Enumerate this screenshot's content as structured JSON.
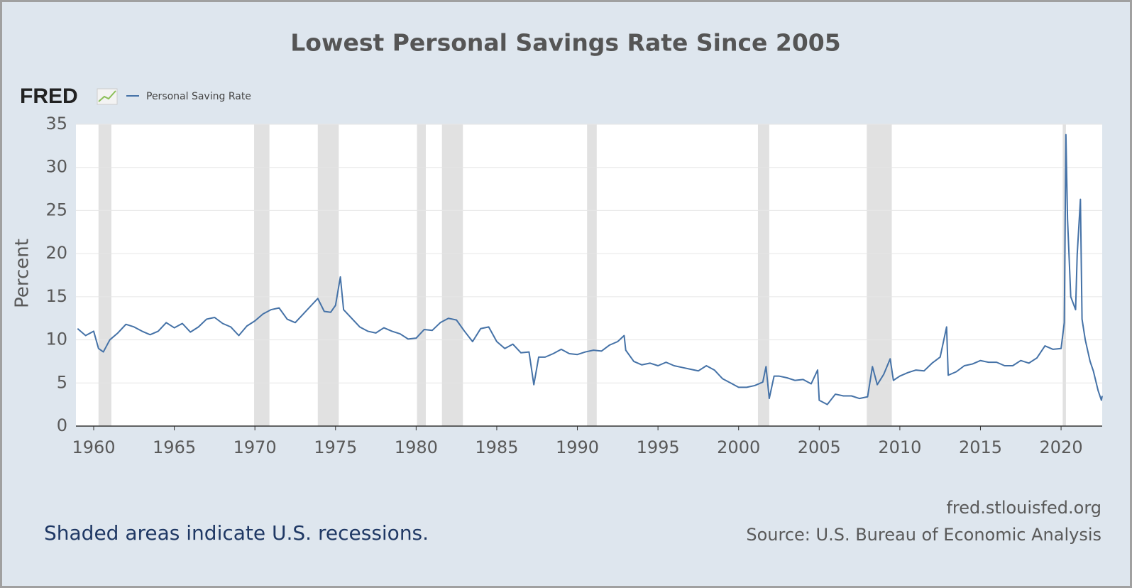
{
  "chart_data": {
    "type": "line",
    "title": "Lowest Personal Savings Rate Since 2005",
    "logo": "FRED",
    "y_label": "Percent",
    "note": "Shaded areas indicate U.S. recessions.",
    "url": "fred.stlouisfed.org",
    "source": "Source: U.S. Bureau of Economic Analysis",
    "xlim": [
      1958.9,
      2022.55
    ],
    "xticks": [
      1960,
      1965,
      1970,
      1975,
      1980,
      1985,
      1990,
      1995,
      2000,
      2005,
      2010,
      2015,
      2020
    ],
    "ylim": [
      0,
      35
    ],
    "yticks": [
      0,
      5,
      10,
      15,
      20,
      25,
      30,
      35
    ],
    "grid": true,
    "recessions": [
      [
        1960.3,
        1961.1
      ],
      [
        1969.95,
        1970.9
      ],
      [
        1973.9,
        1975.2
      ],
      [
        1980.05,
        1980.6
      ],
      [
        1981.6,
        1982.9
      ],
      [
        1990.6,
        1991.2
      ],
      [
        2001.2,
        2001.9
      ],
      [
        2007.95,
        2009.5
      ],
      [
        2020.1,
        2020.3
      ]
    ],
    "x": [
      1959.0,
      1959.5,
      1960.0,
      1960.3,
      1960.6,
      1961.0,
      1961.5,
      1962.0,
      1962.5,
      1963.0,
      1963.5,
      1964.0,
      1964.5,
      1965.0,
      1965.5,
      1966.0,
      1966.5,
      1967.0,
      1967.5,
      1968.0,
      1968.5,
      1969.0,
      1969.5,
      1970.0,
      1970.5,
      1971.0,
      1971.5,
      1972.0,
      1972.5,
      1973.0,
      1973.5,
      1973.9,
      1974.3,
      1974.7,
      1975.0,
      1975.3,
      1975.5,
      1976.0,
      1976.5,
      1977.0,
      1977.5,
      1978.0,
      1978.5,
      1979.0,
      1979.5,
      1980.0,
      1980.5,
      1981.0,
      1981.5,
      1982.0,
      1982.5,
      1983.0,
      1983.5,
      1984.0,
      1984.5,
      1985.0,
      1985.5,
      1986.0,
      1986.5,
      1987.0,
      1987.3,
      1987.6,
      1988.0,
      1988.5,
      1989.0,
      1989.5,
      1990.0,
      1990.5,
      1991.0,
      1991.5,
      1992.0,
      1992.5,
      1992.9,
      1993.0,
      1993.5,
      1994.0,
      1994.5,
      1995.0,
      1995.5,
      1996.0,
      1996.5,
      1997.0,
      1997.5,
      1998.0,
      1998.5,
      1999.0,
      1999.5,
      2000.0,
      2000.5,
      2001.0,
      2001.5,
      2001.7,
      2001.9,
      2002.2,
      2002.5,
      2003.0,
      2003.5,
      2004.0,
      2004.5,
      2004.9,
      2005.0,
      2005.5,
      2006.0,
      2006.5,
      2007.0,
      2007.5,
      2008.0,
      2008.3,
      2008.6,
      2009.0,
      2009.4,
      2009.6,
      2010.0,
      2010.5,
      2011.0,
      2011.5,
      2012.0,
      2012.5,
      2012.9,
      2013.0,
      2013.5,
      2014.0,
      2014.5,
      2015.0,
      2015.5,
      2016.0,
      2016.5,
      2017.0,
      2017.5,
      2018.0,
      2018.5,
      2019.0,
      2019.5,
      2020.0,
      2020.2,
      2020.3,
      2020.4,
      2020.6,
      2020.9,
      2021.0,
      2021.2,
      2021.3,
      2021.5,
      2021.8,
      2022.0,
      2022.3,
      2022.5,
      2022.55
    ],
    "series": [
      {
        "name": "Personal Saving Rate",
        "color": "#4572a7",
        "values": [
          11.3,
          10.5,
          11.0,
          9.0,
          8.6,
          10.0,
          10.8,
          11.8,
          11.5,
          11.0,
          10.6,
          11.0,
          12.0,
          11.4,
          11.9,
          10.9,
          11.5,
          12.4,
          12.6,
          11.9,
          11.5,
          10.5,
          11.6,
          12.2,
          13.0,
          13.5,
          13.7,
          12.4,
          12.0,
          13.0,
          14.0,
          14.8,
          13.3,
          13.2,
          14.0,
          17.3,
          13.5,
          12.5,
          11.5,
          11.0,
          10.8,
          11.4,
          11.0,
          10.7,
          10.1,
          10.2,
          11.2,
          11.1,
          12.0,
          12.5,
          12.3,
          11.0,
          9.8,
          11.3,
          11.5,
          9.8,
          9.0,
          9.5,
          8.5,
          8.6,
          4.8,
          8.0,
          8.0,
          8.4,
          8.9,
          8.4,
          8.3,
          8.6,
          8.8,
          8.7,
          9.4,
          9.8,
          10.5,
          8.8,
          7.5,
          7.1,
          7.3,
          7.0,
          7.4,
          7.0,
          6.8,
          6.6,
          6.4,
          7.0,
          6.5,
          5.5,
          5.0,
          4.5,
          4.5,
          4.7,
          5.1,
          6.9,
          3.2,
          5.8,
          5.8,
          5.6,
          5.3,
          5.4,
          4.9,
          6.5,
          3.0,
          2.5,
          3.7,
          3.5,
          3.5,
          3.2,
          3.4,
          6.9,
          4.8,
          6.0,
          7.8,
          5.3,
          5.8,
          6.2,
          6.5,
          6.4,
          7.3,
          8.0,
          11.5,
          5.9,
          6.3,
          7.0,
          7.2,
          7.6,
          7.4,
          7.4,
          7.0,
          7.0,
          7.6,
          7.3,
          7.9,
          9.3,
          8.9,
          9.0,
          12.0,
          33.8,
          24.0,
          15.0,
          13.5,
          19.9,
          26.3,
          12.4,
          10.0,
          7.5,
          6.4,
          4.1,
          3.0,
          3.5
        ]
      }
    ]
  }
}
